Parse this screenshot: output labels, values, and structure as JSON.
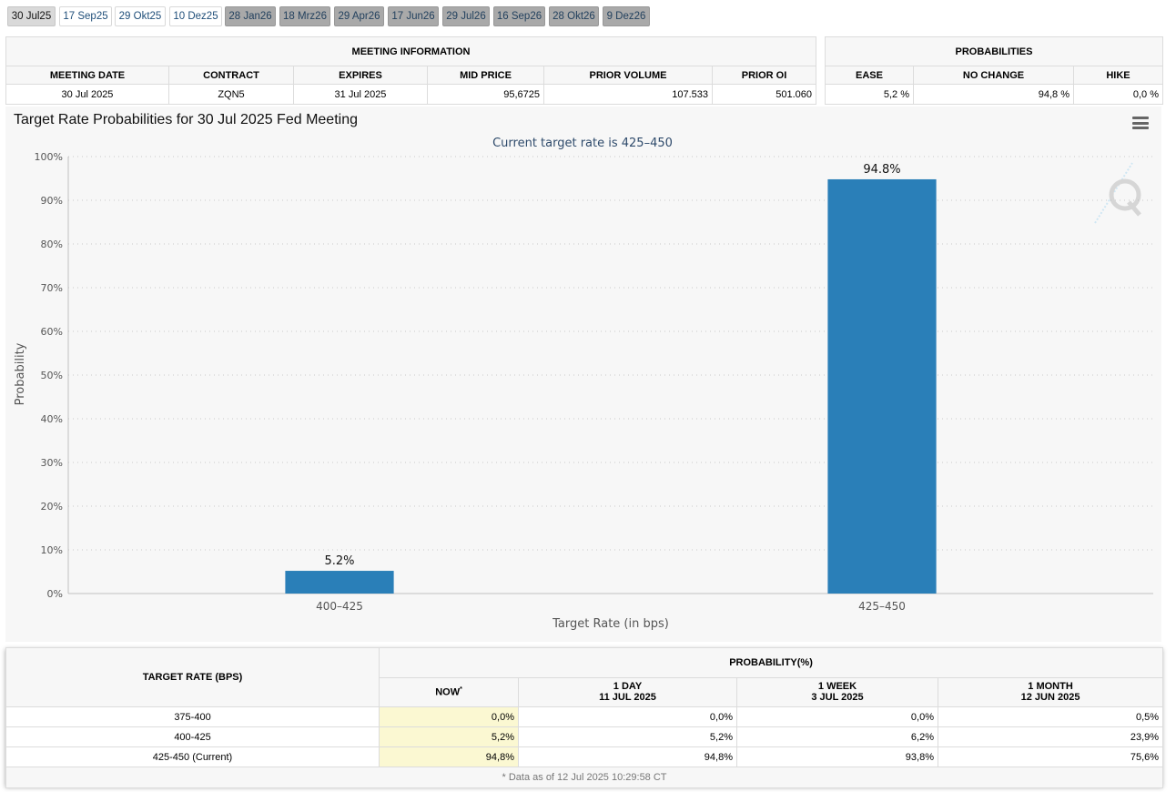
{
  "tabs": [
    {
      "label": "30 Jul25",
      "state": "active"
    },
    {
      "label": "17 Sep25",
      "state": "near"
    },
    {
      "label": "29 Okt25",
      "state": "near"
    },
    {
      "label": "10 Dez25",
      "state": "near"
    },
    {
      "label": "28 Jan26",
      "state": "far"
    },
    {
      "label": "18 Mrz26",
      "state": "far"
    },
    {
      "label": "29 Apr26",
      "state": "far"
    },
    {
      "label": "17 Jun26",
      "state": "far"
    },
    {
      "label": "29 Jul26",
      "state": "far"
    },
    {
      "label": "16 Sep26",
      "state": "far"
    },
    {
      "label": "28 Okt26",
      "state": "far"
    },
    {
      "label": "9 Dez26",
      "state": "far"
    }
  ],
  "meeting_info": {
    "title": "MEETING INFORMATION",
    "headers": [
      "MEETING DATE",
      "CONTRACT",
      "EXPIRES",
      "MID PRICE",
      "PRIOR VOLUME",
      "PRIOR OI"
    ],
    "row": [
      "30 Jul 2025",
      "ZQN5",
      "31 Jul 2025",
      "95,6725",
      "107.533",
      "501.060"
    ]
  },
  "probabilities": {
    "title": "PROBABILITIES",
    "headers": [
      "EASE",
      "NO CHANGE",
      "HIKE"
    ],
    "row": [
      "5,2 %",
      "94,8 %",
      "0,0 %"
    ]
  },
  "chart_data": {
    "type": "bar",
    "title": "Target Rate Probabilities for 30 Jul 2025 Fed Meeting",
    "subtitle": "Current target rate is 425–450",
    "xlabel": "Target Rate (in bps)",
    "ylabel": "Probability",
    "categories": [
      "400–425",
      "425–450"
    ],
    "values": [
      5.2,
      94.8
    ],
    "data_labels": [
      "5.2%",
      "94.8%"
    ],
    "ylim": [
      0,
      100
    ],
    "yticks": [
      "0%",
      "10%",
      "20%",
      "30%",
      "40%",
      "50%",
      "60%",
      "70%",
      "80%",
      "90%",
      "100%"
    ],
    "bar_color": "#2a7fb8",
    "grid": true
  },
  "outlook": {
    "target_rate_header": "TARGET RATE (BPS)",
    "probability_header": "PROBABILITY(%)",
    "cols": [
      {
        "line1": "NOW",
        "line2": ""
      },
      {
        "line1": "1 DAY",
        "line2": "11 JUL 2025"
      },
      {
        "line1": "1 WEEK",
        "line2": "3 JUL 2025"
      },
      {
        "line1": "1 MONTH",
        "line2": "12 JUN 2025"
      }
    ],
    "now_marker": "*",
    "rows": [
      {
        "rate": "375-400",
        "values": [
          "0,0%",
          "0,0%",
          "0,0%",
          "0,5%"
        ]
      },
      {
        "rate": "400-425",
        "values": [
          "5,2%",
          "5,2%",
          "6,2%",
          "23,9%"
        ]
      },
      {
        "rate": "425-450 (Current)",
        "values": [
          "94,8%",
          "94,8%",
          "93,8%",
          "75,6%"
        ]
      }
    ],
    "footnote": "* Data as of 12 Jul 2025 10:29:58 CT"
  }
}
